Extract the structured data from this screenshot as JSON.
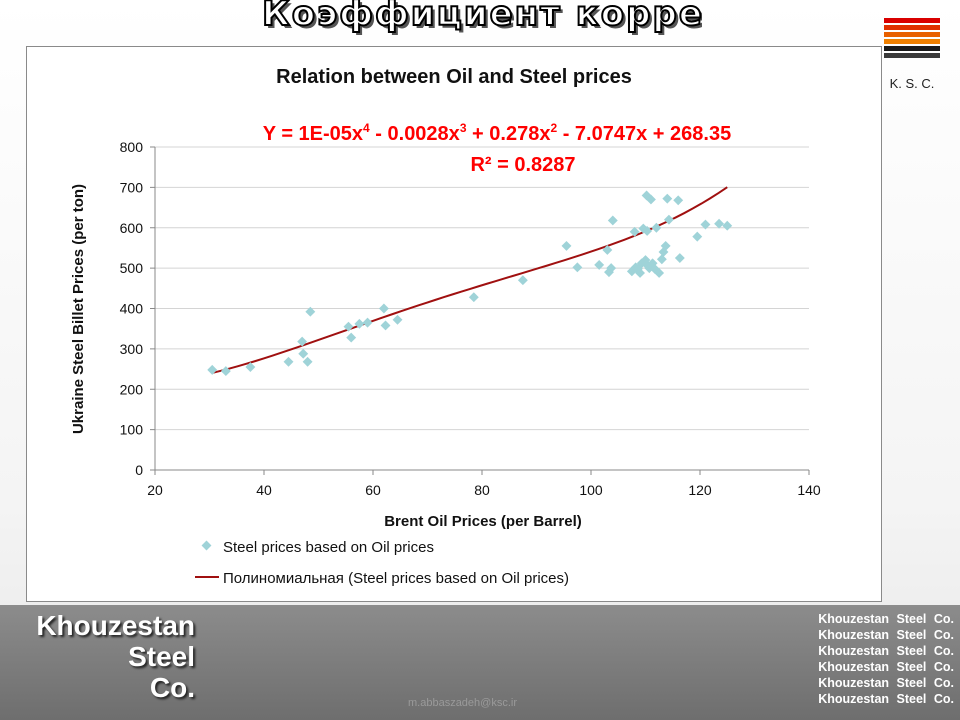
{
  "slide": {
    "title": "Коэффициент корреляции",
    "logo_text": "K. S. C.",
    "logo_colors": [
      "#d90000",
      "#e03000",
      "#e86000",
      "#f08000",
      "#1a1a1a",
      "#3a3a3a"
    ],
    "brand_lines": [
      "Khouzestan",
      "Steel",
      "Co."
    ],
    "repeated_brand": [
      "Khouzestan Steel Co.",
      "Khouzestan Steel Co.",
      "Khouzestan Steel Co.",
      "Khouzestan Steel Co.",
      "Khouzestan Steel Co.",
      "Khouzestan Steel Co."
    ],
    "email": "m.abbaszadeh@ksc.ir"
  },
  "chart_data": {
    "type": "scatter",
    "title": "Relation between Oil and Steel prices",
    "xlabel": "Brent Oil Prices (per Barrel)",
    "ylabel": "Ukraine Steel Billet Prices (per ton)",
    "xlim": [
      20,
      140
    ],
    "ylim": [
      0,
      800
    ],
    "xticks": [
      20,
      40,
      60,
      80,
      100,
      120,
      140
    ],
    "yticks": [
      0,
      100,
      200,
      300,
      400,
      500,
      600,
      700,
      800
    ],
    "grid": "horizontal",
    "equation": "Y = 1E-05x4 - 0.0028x3 + 0.278x2 - 7.0747x + 268.35",
    "r_squared": "R² = 0.8287",
    "series": [
      {
        "name": "Steel prices based on Oil prices",
        "kind": "scatter",
        "color": "#9fd3d8",
        "x": [
          30.5,
          33,
          37.5,
          44.5,
          47,
          47.2,
          48,
          48.5,
          55.5,
          56,
          57.5,
          59,
          62,
          62.3,
          64.5,
          78.5,
          87.5,
          95.5,
          97.5,
          101.5,
          103,
          103.3,
          103.7,
          104,
          107.5,
          108,
          108.2,
          108.6,
          109,
          109.3,
          109.6,
          110,
          110.2,
          110.3,
          110.5,
          110.7,
          111,
          111.3,
          111.7,
          112,
          112.5,
          113,
          113.3,
          113.7,
          114,
          114.3,
          116,
          116.3,
          119.5,
          121,
          123.5,
          125
        ],
        "y": [
          248,
          245,
          255,
          268,
          318,
          288,
          268,
          392,
          355,
          328,
          362,
          365,
          400,
          358,
          372,
          428,
          470,
          555,
          502,
          508,
          545,
          490,
          500,
          618,
          492,
          590,
          502,
          498,
          488,
          512,
          598,
          520,
          680,
          592,
          505,
          500,
          670,
          512,
          498,
          600,
          488,
          522,
          540,
          555,
          672,
          620,
          668,
          525,
          578,
          608,
          610,
          605
        ]
      },
      {
        "name": "Полиномиальная (Steel prices based on Oil prices)",
        "kind": "trendline",
        "color": "#a01010",
        "x_range": [
          30.5,
          125
        ],
        "coefficients": [
          268.35,
          -7.0747,
          0.278,
          -0.0028,
          1e-05
        ]
      }
    ]
  }
}
